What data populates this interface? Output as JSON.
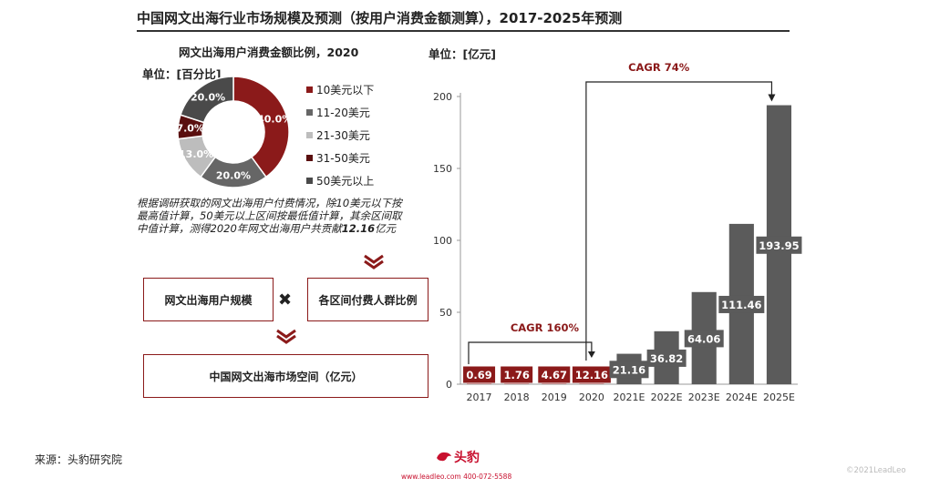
{
  "header": {
    "title": "中国网文出海行业市场规模及预测（按用户消费金额测算），2017-2025年预测"
  },
  "donut": {
    "title": "网文出海用户消费金额比例，2020",
    "unit": "单位：[百分比]"
  },
  "bar": {
    "unit": "单位：[亿元]"
  },
  "note": {
    "text_before": "根据调研获取的网文出海用户付费情况，除10美元以下按最高值计算，50美元以上区间按最低值计算，其余区间取中值计算，测得2020年网文出海用户共贡献",
    "text_strong": "12.16",
    "text_after": "亿元"
  },
  "formula": {
    "box_a": "网文出海用户规模",
    "times": "✖",
    "box_b": "各区间付费人群比例",
    "box_c": "中国网文出海市场空间（亿元）"
  },
  "footer": {
    "source": "来源：头豹研究院",
    "logo_text": "头豹",
    "contact": "www.leadleo.com  400-072-5588",
    "copyright": "©2021LeadLeo"
  },
  "colors": {
    "dark_red": "#8b1a1a",
    "gray": "#666666",
    "light_gray": "#bdbdbd",
    "dark_gray": "#4a4a4a",
    "bar_red": "#8b1a1a",
    "bar_gray": "#5b5b5b"
  },
  "chart_data": [
    {
      "type": "pie",
      "title": "网文出海用户消费金额比例，2020",
      "categories": [
        "10美元以下",
        "11-20美元",
        "21-30美元",
        "31-50美元",
        "50美元以上"
      ],
      "values": [
        40.0,
        20.0,
        13.0,
        7.0,
        20.0
      ],
      "labels": [
        "40.0%",
        "20.0%",
        "13.0%",
        "7.0%",
        "20.0%"
      ],
      "colors": [
        "#8b1a1a",
        "#666666",
        "#bdbdbd",
        "#5a0f0f",
        "#4a4a4a"
      ],
      "legend": "right"
    },
    {
      "type": "bar",
      "categories": [
        "2017",
        "2018",
        "2019",
        "2020",
        "2021E",
        "2022E",
        "2023E",
        "2024E",
        "2025E"
      ],
      "values": [
        0.69,
        1.76,
        4.67,
        12.16,
        21.16,
        36.82,
        64.06,
        111.46,
        193.95
      ],
      "labels": [
        "0.69",
        "1.76",
        "4.67",
        "12.16",
        "21.16",
        "36.82",
        "64.06",
        "111.46",
        "193.95"
      ],
      "bar_colors": [
        "#8b1a1a",
        "#8b1a1a",
        "#8b1a1a",
        "#8b1a1a",
        "#5b5b5b",
        "#5b5b5b",
        "#5b5b5b",
        "#5b5b5b",
        "#5b5b5b"
      ],
      "yticks": [
        "0",
        "50",
        "100",
        "150",
        "200"
      ],
      "ylim": [
        0,
        200
      ],
      "annotations": [
        {
          "text": "CAGR 160%",
          "from": "2017",
          "to": "2020"
        },
        {
          "text": "CAGR 74%",
          "from": "2020",
          "to": "2025E"
        }
      ]
    }
  ]
}
